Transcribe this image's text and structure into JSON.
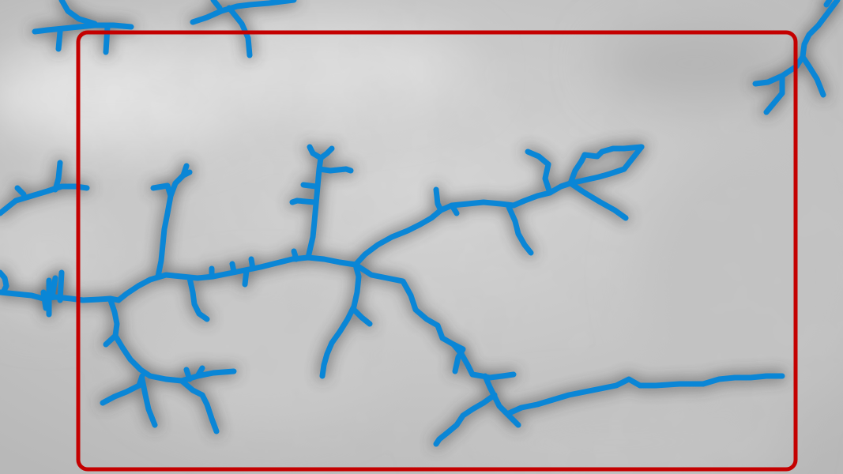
{
  "map": {
    "background": "grayscale-terrain",
    "colors": {
      "terrain_light": "#d2d2d2",
      "terrain_mid": "#bdbdbd",
      "terrain_dark": "#5a5a5a",
      "river": "#0a86d6",
      "selection": "#c40000"
    },
    "layers": {
      "rivers": "river-network",
      "selection": "selection-rectangle"
    }
  }
}
